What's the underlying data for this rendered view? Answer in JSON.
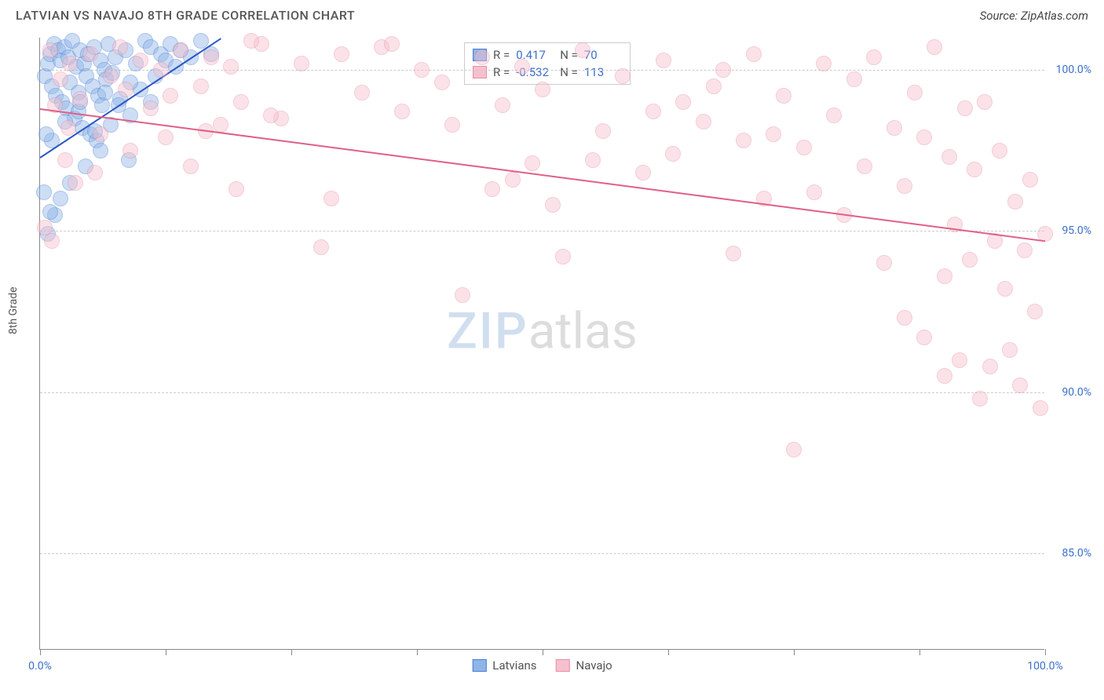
{
  "header": {
    "title": "LATVIAN VS NAVAJO 8TH GRADE CORRELATION CHART",
    "source": "Source: ZipAtlas.com"
  },
  "watermark": {
    "zip": "ZIP",
    "atlas": "atlas"
  },
  "chart": {
    "type": "scatter",
    "background_color": "#ffffff",
    "grid_color": "#cccccc",
    "axis_color": "#888888",
    "label_color": "#3b6fc9",
    "title_fontsize": 16,
    "label_fontsize": 14,
    "y_axis_label": "8th Grade",
    "xlim": [
      0,
      100
    ],
    "ylim": [
      82,
      101
    ],
    "y_ticks": [
      85.0,
      90.0,
      95.0,
      100.0
    ],
    "y_tick_labels": [
      "85.0%",
      "90.0%",
      "95.0%",
      "100.0%"
    ],
    "x_ticks": [
      0,
      12.5,
      25,
      37.5,
      50,
      62.5,
      75,
      87.5,
      100
    ],
    "x_tick_labels": {
      "0": "0.0%",
      "100": "100.0%"
    },
    "point_radius": 10,
    "point_opacity": 0.45,
    "series": [
      {
        "name": "Latvians",
        "fill_color": "#8fb5e8",
        "stroke_color": "#4a7fd1",
        "trend": {
          "x1": 0,
          "y1": 97.3,
          "x2": 18,
          "y2": 101.0,
          "color": "#2a57c5",
          "width": 2
        },
        "stats": {
          "R": "0.417",
          "N": "70"
        },
        "points": [
          [
            0.5,
            99.8
          ],
          [
            0.8,
            100.2
          ],
          [
            1.0,
            100.5
          ],
          [
            1.2,
            99.5
          ],
          [
            1.4,
            100.8
          ],
          [
            1.6,
            99.2
          ],
          [
            1.8,
            100.6
          ],
          [
            2.0,
            100.3
          ],
          [
            2.2,
            99.0
          ],
          [
            2.4,
            100.7
          ],
          [
            2.6,
            98.8
          ],
          [
            2.8,
            100.4
          ],
          [
            3.0,
            99.6
          ],
          [
            3.2,
            100.9
          ],
          [
            3.4,
            98.5
          ],
          [
            3.6,
            100.1
          ],
          [
            3.8,
            99.3
          ],
          [
            4.0,
            100.6
          ],
          [
            4.2,
            98.2
          ],
          [
            4.4,
            100.2
          ],
          [
            4.6,
            99.8
          ],
          [
            4.8,
            100.5
          ],
          [
            5.0,
            98.0
          ],
          [
            5.2,
            99.5
          ],
          [
            5.4,
            100.7
          ],
          [
            5.6,
            97.8
          ],
          [
            5.8,
            99.2
          ],
          [
            6.0,
            100.3
          ],
          [
            6.2,
            98.9
          ],
          [
            6.4,
            100.0
          ],
          [
            6.6,
            99.7
          ],
          [
            6.8,
            100.8
          ],
          [
            7.0,
            98.3
          ],
          [
            7.2,
            99.9
          ],
          [
            7.5,
            100.4
          ],
          [
            8.0,
            99.1
          ],
          [
            8.5,
            100.6
          ],
          [
            9.0,
            98.6
          ],
          [
            9.5,
            100.2
          ],
          [
            10.0,
            99.4
          ],
          [
            10.5,
            100.9
          ],
          [
            11.0,
            100.7
          ],
          [
            11.5,
            99.8
          ],
          [
            12.0,
            100.5
          ],
          [
            12.5,
            100.3
          ],
          [
            13.0,
            100.8
          ],
          [
            13.5,
            100.1
          ],
          [
            14.0,
            100.6
          ],
          [
            15.0,
            100.4
          ],
          [
            16.0,
            100.9
          ],
          [
            17.0,
            100.5
          ],
          [
            6.0,
            97.5
          ],
          [
            4.5,
            97.0
          ],
          [
            3.0,
            96.5
          ],
          [
            2.0,
            96.0
          ],
          [
            1.5,
            95.5
          ],
          [
            8.8,
            97.2
          ],
          [
            2.5,
            98.4
          ],
          [
            3.8,
            98.7
          ],
          [
            5.5,
            98.1
          ],
          [
            7.8,
            98.9
          ],
          [
            1.0,
            95.6
          ],
          [
            0.8,
            94.9
          ],
          [
            1.2,
            97.8
          ],
          [
            4.0,
            99.0
          ],
          [
            6.5,
            99.3
          ],
          [
            9.0,
            99.6
          ],
          [
            11.0,
            99.0
          ],
          [
            0.6,
            98.0
          ],
          [
            0.4,
            96.2
          ]
        ]
      },
      {
        "name": "Navajo",
        "fill_color": "#f7c0ce",
        "stroke_color": "#e88fa6",
        "trend": {
          "x1": 0,
          "y1": 98.8,
          "x2": 100,
          "y2": 94.7,
          "color": "#e05f86",
          "width": 2
        },
        "stats": {
          "R": "-0.532",
          "N": "113"
        },
        "points": [
          [
            0.5,
            95.1
          ],
          [
            1.0,
            100.6
          ],
          [
            1.5,
            98.9
          ],
          [
            2.0,
            99.7
          ],
          [
            2.5,
            97.2
          ],
          [
            3.0,
            100.2
          ],
          [
            3.5,
            96.5
          ],
          [
            4.0,
            99.1
          ],
          [
            5.0,
            100.5
          ],
          [
            6.0,
            98.0
          ],
          [
            7.0,
            99.8
          ],
          [
            8.0,
            100.7
          ],
          [
            9.0,
            97.5
          ],
          [
            10.0,
            100.3
          ],
          [
            11.0,
            98.8
          ],
          [
            12.0,
            100.0
          ],
          [
            13.0,
            99.2
          ],
          [
            14.0,
            100.6
          ],
          [
            15.0,
            97.0
          ],
          [
            16.0,
            99.5
          ],
          [
            17.0,
            100.4
          ],
          [
            18.0,
            98.3
          ],
          [
            19.0,
            100.1
          ],
          [
            20.0,
            99.0
          ],
          [
            22.0,
            100.8
          ],
          [
            24.0,
            98.5
          ],
          [
            26.0,
            100.2
          ],
          [
            28.0,
            94.5
          ],
          [
            30.0,
            100.5
          ],
          [
            32.0,
            99.3
          ],
          [
            34.0,
            100.7
          ],
          [
            36.0,
            98.7
          ],
          [
            38.0,
            100.0
          ],
          [
            40.0,
            99.6
          ],
          [
            42.0,
            93.0
          ],
          [
            44.0,
            100.4
          ],
          [
            45.0,
            96.3
          ],
          [
            46.0,
            98.9
          ],
          [
            48.0,
            100.1
          ],
          [
            49.0,
            97.1
          ],
          [
            50.0,
            99.4
          ],
          [
            51.0,
            95.8
          ],
          [
            52.0,
            94.2
          ],
          [
            54.0,
            100.6
          ],
          [
            56.0,
            98.1
          ],
          [
            58.0,
            99.8
          ],
          [
            60.0,
            96.8
          ],
          [
            62.0,
            100.3
          ],
          [
            63.0,
            97.4
          ],
          [
            64.0,
            99.0
          ],
          [
            66.0,
            98.4
          ],
          [
            68.0,
            100.0
          ],
          [
            69.0,
            94.3
          ],
          [
            70.0,
            97.8
          ],
          [
            71.0,
            100.5
          ],
          [
            72.0,
            96.0
          ],
          [
            74.0,
            99.2
          ],
          [
            75.0,
            88.2
          ],
          [
            76.0,
            97.6
          ],
          [
            78.0,
            100.2
          ],
          [
            79.0,
            98.6
          ],
          [
            80.0,
            95.5
          ],
          [
            81.0,
            99.7
          ],
          [
            82.0,
            97.0
          ],
          [
            83.0,
            100.4
          ],
          [
            84.0,
            94.0
          ],
          [
            85.0,
            98.2
          ],
          [
            86.0,
            96.4
          ],
          [
            87.0,
            99.3
          ],
          [
            88.0,
            97.9
          ],
          [
            89.0,
            100.7
          ],
          [
            90.0,
            93.6
          ],
          [
            90.5,
            97.3
          ],
          [
            91.0,
            95.2
          ],
          [
            91.5,
            91.0
          ],
          [
            92.0,
            98.8
          ],
          [
            92.5,
            94.1
          ],
          [
            93.0,
            96.9
          ],
          [
            93.5,
            89.8
          ],
          [
            94.0,
            99.0
          ],
          [
            94.5,
            90.8
          ],
          [
            95.0,
            94.7
          ],
          [
            95.5,
            97.5
          ],
          [
            96.0,
            93.2
          ],
          [
            96.5,
            91.3
          ],
          [
            97.0,
            95.9
          ],
          [
            97.5,
            90.2
          ],
          [
            98.0,
            94.4
          ],
          [
            98.5,
            96.6
          ],
          [
            99.0,
            92.5
          ],
          [
            99.5,
            89.5
          ],
          [
            100.0,
            94.9
          ],
          [
            90.0,
            90.5
          ],
          [
            88.0,
            91.7
          ],
          [
            86.0,
            92.3
          ],
          [
            77.0,
            96.2
          ],
          [
            73.0,
            98.0
          ],
          [
            67.0,
            99.5
          ],
          [
            61.0,
            98.7
          ],
          [
            55.0,
            97.2
          ],
          [
            47.0,
            96.6
          ],
          [
            41.0,
            98.3
          ],
          [
            35.0,
            100.8
          ],
          [
            29.0,
            96.0
          ],
          [
            23.0,
            98.6
          ],
          [
            21.0,
            100.9
          ],
          [
            1.2,
            94.7
          ],
          [
            2.8,
            98.2
          ],
          [
            5.5,
            96.8
          ],
          [
            8.5,
            99.4
          ],
          [
            12.5,
            97.9
          ],
          [
            16.5,
            98.1
          ],
          [
            19.5,
            96.3
          ]
        ]
      }
    ],
    "stats_box": {
      "r_label": "R =",
      "n_label": "N ="
    },
    "legend": {
      "items": [
        {
          "label": "Latvians",
          "fill": "#8fb5e8",
          "stroke": "#4a7fd1"
        },
        {
          "label": "Navajo",
          "fill": "#f7c0ce",
          "stroke": "#e88fa6"
        }
      ]
    }
  }
}
